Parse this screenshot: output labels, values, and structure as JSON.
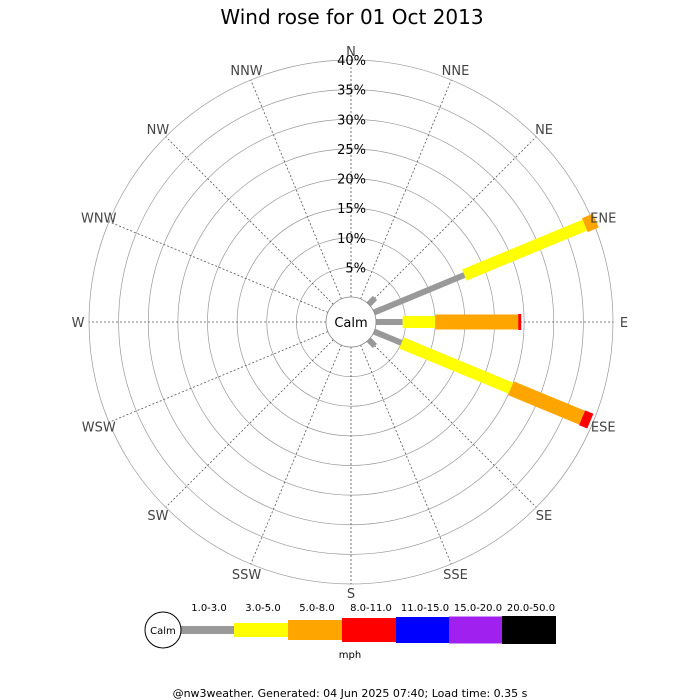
{
  "chart_data": {
    "type": "wind-rose",
    "title": "Wind rose for 01 Oct 2013",
    "calm_label": "Calm",
    "directions": [
      "N",
      "NNE",
      "NE",
      "ENE",
      "E",
      "ESE",
      "SE",
      "SSE",
      "S",
      "SSW",
      "SW",
      "WSW",
      "W",
      "WNW",
      "NW",
      "NNW"
    ],
    "radial_ticks": [
      5,
      10,
      15,
      20,
      25,
      30,
      35,
      40
    ],
    "radial_tick_labels": [
      "5%",
      "10%",
      "15%",
      "20%",
      "25%",
      "30%",
      "35%",
      "40%"
    ],
    "rmax": 40,
    "unit_label": "mph",
    "speed_bins": [
      {
        "label": "1.0-3.0",
        "color": "#999999"
      },
      {
        "label": "3.0-5.0",
        "color": "#ffff00"
      },
      {
        "label": "5.0-8.0",
        "color": "#ffa500"
      },
      {
        "label": "8.0-11.0",
        "color": "#ff0000"
      },
      {
        "label": "11.0-15.0",
        "color": "#0000ff"
      },
      {
        "label": "15.0-20.0",
        "color": "#a020f0"
      },
      {
        "label": "20.0-50.0",
        "color": "#000000"
      }
    ],
    "series_cumulative_percent": {
      "NE": [
        1.5,
        1.5,
        1.5,
        1.5,
        1.5,
        1.5,
        1.5
      ],
      "ENE": [
        16.5,
        38.5,
        40.5,
        40.5,
        40.5,
        40.5,
        40.5
      ],
      "E": [
        4.5,
        10,
        24,
        24.5,
        24.5,
        24.5,
        24.5
      ],
      "ESE": [
        5,
        25,
        38,
        39.5,
        39.5,
        39.5,
        39.5
      ],
      "SE": [
        1.5,
        1.5,
        1.5,
        1.5,
        1.5,
        1.5,
        1.5
      ]
    }
  },
  "footer": "@nw3weather. Generated: 04 Jun 2025 07:40; Load time: 0.35 s"
}
